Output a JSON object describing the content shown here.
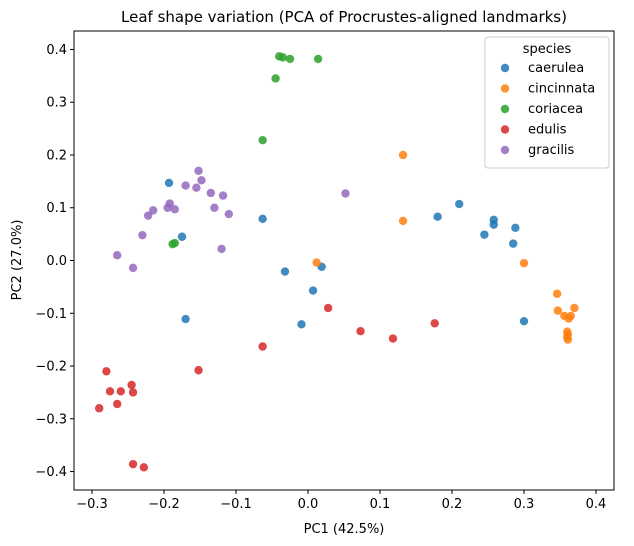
{
  "chart_data": {
    "type": "scatter",
    "title": "Leaf shape variation (PCA of Procrustes-aligned landmarks)",
    "xlabel": "PC1 (42.5%)",
    "ylabel": "PC2 (27.0%)",
    "xlim": [
      -0.325,
      0.425
    ],
    "ylim": [
      -0.435,
      0.435
    ],
    "xticks": [
      -0.3,
      -0.2,
      -0.1,
      0.0,
      0.1,
      0.2,
      0.3,
      0.4
    ],
    "xtick_labels": [
      "−0.3",
      "−0.2",
      "−0.1",
      "0.0",
      "0.1",
      "0.2",
      "0.3",
      "0.4"
    ],
    "yticks": [
      -0.4,
      -0.3,
      -0.2,
      -0.1,
      0.0,
      0.1,
      0.2,
      0.3,
      0.4
    ],
    "ytick_labels": [
      "−0.4",
      "−0.3",
      "−0.2",
      "−0.1",
      "0.0",
      "0.1",
      "0.2",
      "0.3",
      "0.4"
    ],
    "grid": false,
    "legend": {
      "title": "species",
      "placement": "top-right"
    },
    "series": [
      {
        "name": "caerulea",
        "color": "#1f77b4",
        "points": [
          [
            -0.193,
            0.147
          ],
          [
            -0.175,
            0.045
          ],
          [
            -0.17,
            -0.111
          ],
          [
            -0.063,
            0.079
          ],
          [
            -0.032,
            -0.021
          ],
          [
            0.007,
            -0.057
          ],
          [
            0.019,
            -0.012
          ],
          [
            -0.009,
            -0.121
          ],
          [
            0.18,
            0.083
          ],
          [
            0.21,
            0.107
          ],
          [
            0.245,
            0.049
          ],
          [
            0.258,
            0.068
          ],
          [
            0.258,
            0.077
          ],
          [
            0.285,
            0.032
          ],
          [
            0.288,
            0.062
          ],
          [
            0.3,
            -0.115
          ]
        ]
      },
      {
        "name": "cincinnata",
        "color": "#ff7f0e",
        "points": [
          [
            0.132,
            0.2
          ],
          [
            0.132,
            0.075
          ],
          [
            0.012,
            -0.004
          ],
          [
            0.3,
            -0.005
          ],
          [
            0.346,
            -0.063
          ],
          [
            0.347,
            -0.095
          ],
          [
            0.356,
            -0.105
          ],
          [
            0.362,
            -0.11
          ],
          [
            0.365,
            -0.105
          ],
          [
            0.37,
            -0.09
          ],
          [
            0.36,
            -0.135
          ],
          [
            0.361,
            -0.14
          ],
          [
            0.36,
            -0.145
          ],
          [
            0.361,
            -0.15
          ]
        ]
      },
      {
        "name": "coriacea",
        "color": "#2ca02c",
        "points": [
          [
            -0.04,
            0.387
          ],
          [
            -0.035,
            0.385
          ],
          [
            -0.025,
            0.382
          ],
          [
            0.014,
            0.382
          ],
          [
            -0.045,
            0.345
          ],
          [
            -0.063,
            0.228
          ],
          [
            -0.188,
            0.031
          ],
          [
            -0.185,
            0.033
          ]
        ]
      },
      {
        "name": "edulis",
        "color": "#d62728",
        "points": [
          [
            -0.29,
            -0.28
          ],
          [
            -0.28,
            -0.21
          ],
          [
            -0.275,
            -0.248
          ],
          [
            -0.265,
            -0.272
          ],
          [
            -0.26,
            -0.248
          ],
          [
            -0.245,
            -0.236
          ],
          [
            -0.243,
            -0.25
          ],
          [
            -0.243,
            -0.386
          ],
          [
            -0.228,
            -0.392
          ],
          [
            -0.152,
            -0.208
          ],
          [
            -0.063,
            -0.163
          ],
          [
            0.028,
            -0.09
          ],
          [
            0.073,
            -0.134
          ],
          [
            0.118,
            -0.148
          ],
          [
            0.176,
            -0.119
          ]
        ]
      },
      {
        "name": "gracilis",
        "color": "#9467bd",
        "points": [
          [
            -0.265,
            0.01
          ],
          [
            -0.243,
            -0.014
          ],
          [
            -0.23,
            0.048
          ],
          [
            -0.222,
            0.085
          ],
          [
            -0.215,
            0.095
          ],
          [
            -0.195,
            0.1
          ],
          [
            -0.192,
            0.108
          ],
          [
            -0.185,
            0.097
          ],
          [
            -0.17,
            0.142
          ],
          [
            -0.155,
            0.138
          ],
          [
            -0.152,
            0.17
          ],
          [
            -0.148,
            0.152
          ],
          [
            -0.135,
            0.128
          ],
          [
            -0.13,
            0.1
          ],
          [
            -0.12,
            0.022
          ],
          [
            -0.118,
            0.123
          ],
          [
            -0.11,
            0.088
          ],
          [
            0.052,
            0.127
          ]
        ]
      }
    ]
  }
}
